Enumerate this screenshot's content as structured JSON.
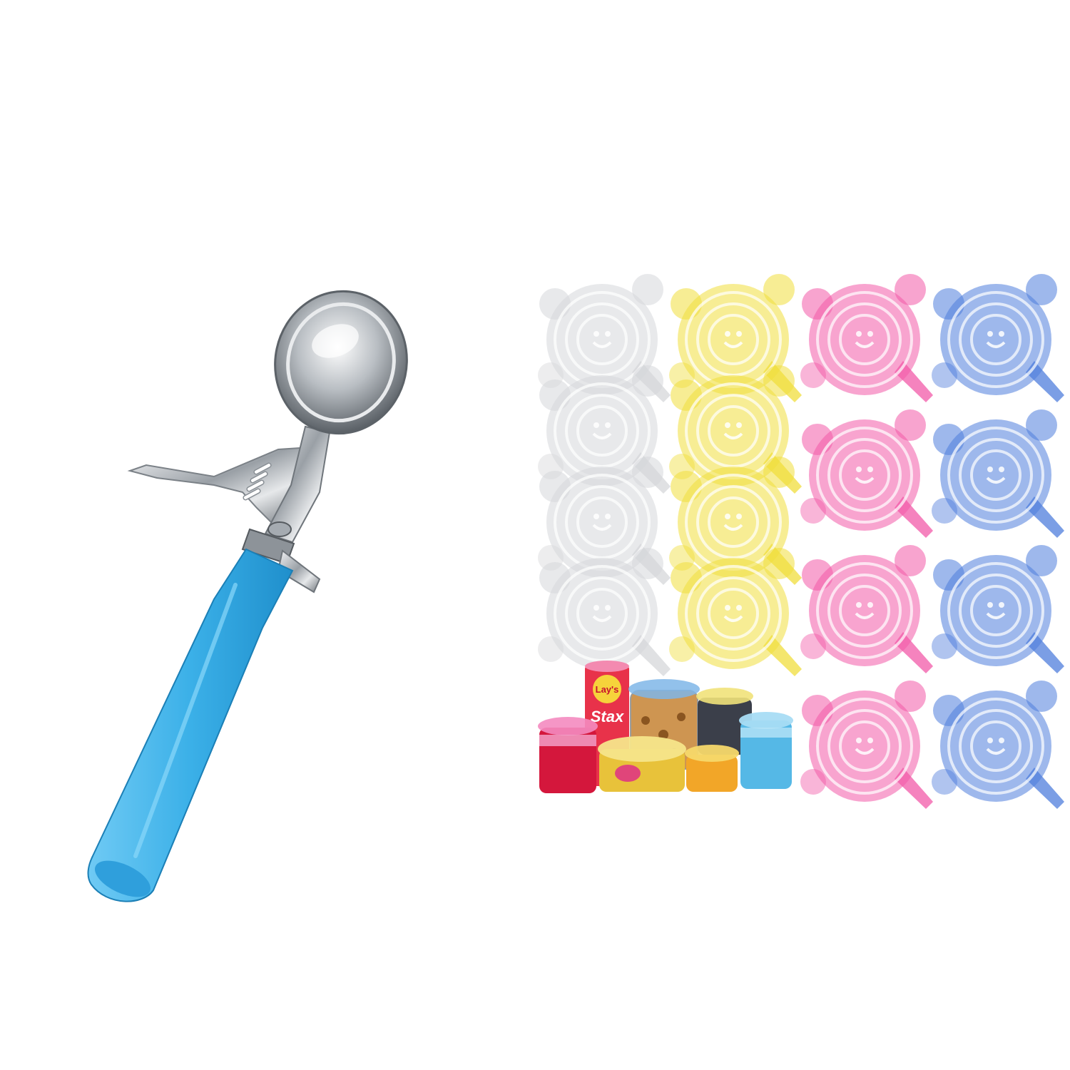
{
  "packaging": {
    "chips_brand": "Lay's",
    "chips_product": "Stax"
  },
  "colors": {
    "background": "#ffffff",
    "scoop_handle": "#3bb0e8",
    "steel": "#c9ccd0",
    "lid_clear": "#e8e8ea",
    "lid_yellow": "#f2e35a",
    "lid_pink": "#f26cb0",
    "lid_blue": "#5a86e0"
  },
  "lid_groups": [
    {
      "color": "clear",
      "count": 4
    },
    {
      "color": "yellow",
      "count": 4
    },
    {
      "color": "pink",
      "count": 4
    },
    {
      "color": "blue",
      "count": 4
    }
  ]
}
